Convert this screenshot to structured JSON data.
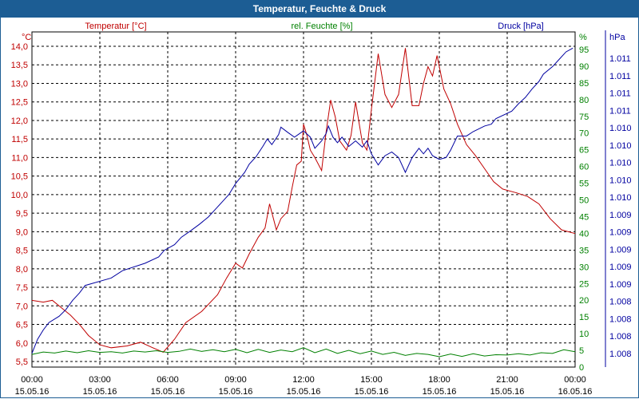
{
  "window": {
    "title": "Temperatur, Feuchte & Druck"
  },
  "chart_data": {
    "type": "line",
    "title": "Temperatur, Feuchte & Druck",
    "x": [
      "15.05.16 00:00",
      "15.05.16 03:00",
      "15.05.16 06:00",
      "15.05.16 09:00",
      "15.05.16 12:00",
      "15.05.16 15:00",
      "15.05.16 18:00",
      "15.05.16 21:00",
      "16.05.16 00:00"
    ],
    "x_ticks": [
      {
        "time": "00:00",
        "date": "15.05.16"
      },
      {
        "time": "03:00",
        "date": "15.05.16"
      },
      {
        "time": "06:00",
        "date": "15.05.16"
      },
      {
        "time": "09:00",
        "date": "15.05.16"
      },
      {
        "time": "12:00",
        "date": "15.05.16"
      },
      {
        "time": "15:00",
        "date": "15.05.16"
      },
      {
        "time": "18:00",
        "date": "15.05.16"
      },
      {
        "time": "21:00",
        "date": "15.05.16"
      },
      {
        "time": "00:00",
        "date": "16.05.16"
      }
    ],
    "xlim_hours": [
      0,
      24
    ],
    "grid": true,
    "axes": {
      "left": {
        "unit": "°C",
        "ylim": [
          5.5,
          14.0
        ],
        "ticks": [
          "5,5",
          "6,0",
          "6,5",
          "7,0",
          "7,5",
          "8,0",
          "8,5",
          "9,0",
          "9,5",
          "10,0",
          "10,5",
          "11,0",
          "11,5",
          "12,0",
          "12,5",
          "13,0",
          "13,5",
          "14,0"
        ],
        "color": "#c00000"
      },
      "right1": {
        "unit": "%",
        "ylim": [
          0,
          95
        ],
        "ticks": [
          "0",
          "5",
          "10",
          "15",
          "20",
          "25",
          "30",
          "35",
          "40",
          "45",
          "50",
          "55",
          "60",
          "65",
          "70",
          "75",
          "80",
          "85",
          "90",
          "95"
        ],
        "color": "#008000"
      },
      "right2": {
        "unit": "hPa",
        "ticks": [
          "1.008",
          "1.008",
          "1.008",
          "1.008",
          "1.009",
          "1.009",
          "1.009",
          "1.009",
          "1.009",
          "1.010",
          "1.010",
          "1.010",
          "1.010",
          "1.010",
          "1.011",
          "1.011",
          "1.011",
          "1.011"
        ],
        "color": "#0000a0"
      }
    },
    "series": [
      {
        "name": "Temperatur [°C]",
        "axis": "left",
        "color": "#c00000",
        "points": [
          [
            0,
            7.15
          ],
          [
            0.5,
            7.1
          ],
          [
            0.9,
            7.15
          ],
          [
            1.3,
            6.95
          ],
          [
            1.7,
            6.75
          ],
          [
            2.1,
            6.5
          ],
          [
            2.5,
            6.2
          ],
          [
            3.0,
            5.95
          ],
          [
            3.5,
            5.87
          ],
          [
            4.2,
            5.92
          ],
          [
            4.8,
            6.02
          ],
          [
            5.3,
            5.88
          ],
          [
            5.8,
            5.75
          ],
          [
            6.3,
            6.1
          ],
          [
            6.8,
            6.55
          ],
          [
            7.5,
            6.85
          ],
          [
            8.2,
            7.3
          ],
          [
            8.6,
            7.75
          ],
          [
            9.0,
            8.15
          ],
          [
            9.3,
            8.02
          ],
          [
            9.6,
            8.4
          ],
          [
            10.0,
            8.85
          ],
          [
            10.3,
            9.1
          ],
          [
            10.5,
            9.75
          ],
          [
            10.8,
            9.05
          ],
          [
            11.0,
            9.35
          ],
          [
            11.3,
            9.55
          ],
          [
            11.5,
            10.2
          ],
          [
            11.7,
            10.8
          ],
          [
            11.9,
            10.9
          ],
          [
            12.0,
            11.9
          ],
          [
            12.15,
            11.6
          ],
          [
            12.3,
            11.2
          ],
          [
            12.5,
            11.0
          ],
          [
            12.8,
            10.65
          ],
          [
            13.0,
            11.7
          ],
          [
            13.2,
            12.55
          ],
          [
            13.4,
            12.1
          ],
          [
            13.6,
            11.45
          ],
          [
            13.9,
            11.2
          ],
          [
            14.1,
            11.6
          ],
          [
            14.3,
            12.5
          ],
          [
            14.6,
            11.4
          ],
          [
            14.8,
            11.2
          ],
          [
            15.0,
            12.3
          ],
          [
            15.3,
            13.8
          ],
          [
            15.6,
            12.7
          ],
          [
            15.9,
            12.35
          ],
          [
            16.2,
            12.7
          ],
          [
            16.5,
            13.95
          ],
          [
            16.8,
            12.4
          ],
          [
            17.1,
            12.4
          ],
          [
            17.3,
            13.0
          ],
          [
            17.5,
            13.45
          ],
          [
            17.7,
            13.2
          ],
          [
            17.9,
            13.75
          ],
          [
            18.2,
            12.85
          ],
          [
            18.5,
            12.45
          ],
          [
            18.8,
            11.9
          ],
          [
            19.2,
            11.35
          ],
          [
            19.6,
            11.05
          ],
          [
            20.0,
            10.7
          ],
          [
            20.4,
            10.35
          ],
          [
            20.8,
            10.15
          ],
          [
            21.4,
            10.05
          ],
          [
            21.9,
            9.95
          ],
          [
            22.4,
            9.75
          ],
          [
            22.9,
            9.35
          ],
          [
            23.4,
            9.05
          ],
          [
            24.0,
            8.95
          ]
        ]
      },
      {
        "name": "rel. Feuchte [%]",
        "axis": "right1",
        "color": "#008000",
        "points": [
          [
            0,
            3.8
          ],
          [
            0.5,
            4.5
          ],
          [
            1.0,
            4.2
          ],
          [
            1.5,
            4.8
          ],
          [
            2.0,
            4.3
          ],
          [
            2.5,
            4.9
          ],
          [
            3.0,
            4.4
          ],
          [
            3.5,
            4.6
          ],
          [
            4.0,
            4.2
          ],
          [
            4.5,
            4.8
          ],
          [
            5.0,
            4.5
          ],
          [
            5.5,
            4.9
          ],
          [
            6.0,
            4.4
          ],
          [
            6.5,
            4.7
          ],
          [
            7.0,
            5.4
          ],
          [
            7.5,
            4.7
          ],
          [
            8.0,
            5.2
          ],
          [
            8.5,
            4.6
          ],
          [
            9.0,
            5.3
          ],
          [
            9.5,
            4.3
          ],
          [
            10.0,
            5.3
          ],
          [
            10.5,
            4.4
          ],
          [
            11.0,
            5.1
          ],
          [
            11.5,
            4.6
          ],
          [
            12.0,
            5.8
          ],
          [
            12.5,
            4.3
          ],
          [
            13.0,
            5.4
          ],
          [
            13.5,
            4.1
          ],
          [
            14.0,
            5.0
          ],
          [
            14.5,
            4.0
          ],
          [
            15.0,
            4.8
          ],
          [
            15.5,
            3.8
          ],
          [
            16.0,
            4.4
          ],
          [
            16.5,
            3.5
          ],
          [
            17.0,
            4.1
          ],
          [
            17.5,
            3.8
          ],
          [
            18.0,
            3.1
          ],
          [
            18.5,
            3.9
          ],
          [
            19.0,
            3.2
          ],
          [
            19.5,
            4.0
          ],
          [
            20.0,
            3.3
          ],
          [
            20.5,
            3.7
          ],
          [
            21.0,
            3.6
          ],
          [
            21.5,
            4.0
          ],
          [
            22.0,
            3.6
          ],
          [
            22.5,
            4.3
          ],
          [
            23.0,
            4.1
          ],
          [
            23.5,
            5.2
          ],
          [
            24.0,
            4.6
          ]
        ]
      },
      {
        "name": "Druck [hPa]",
        "axis": "right2",
        "color": "#0000a0",
        "steps": [
          [
            0,
            5.72
          ],
          [
            0.25,
            6.1
          ],
          [
            0.5,
            6.35
          ],
          [
            0.75,
            6.55
          ],
          [
            1.2,
            6.72
          ],
          [
            1.5,
            6.9
          ],
          [
            1.8,
            7.15
          ],
          [
            2.1,
            7.35
          ],
          [
            2.35,
            7.55
          ],
          [
            3.5,
            7.75
          ],
          [
            4.0,
            7.95
          ],
          [
            5.0,
            8.15
          ],
          [
            5.6,
            8.32
          ],
          [
            5.85,
            8.5
          ],
          [
            6.3,
            8.65
          ],
          [
            6.6,
            8.85
          ],
          [
            7.0,
            9.02
          ],
          [
            7.4,
            9.2
          ],
          [
            7.8,
            9.4
          ],
          [
            8.1,
            9.6
          ],
          [
            8.4,
            9.8
          ],
          [
            8.7,
            10.0
          ],
          [
            9.0,
            10.3
          ],
          [
            9.4,
            10.6
          ],
          [
            9.6,
            10.82
          ],
          [
            9.9,
            11.02
          ],
          [
            10.2,
            11.3
          ],
          [
            10.4,
            11.5
          ],
          [
            10.6,
            11.35
          ],
          [
            10.9,
            11.62
          ],
          [
            11.0,
            11.82
          ],
          [
            11.3,
            11.68
          ],
          [
            11.6,
            11.55
          ],
          [
            12.0,
            11.72
          ],
          [
            12.3,
            11.55
          ],
          [
            12.5,
            11.25
          ],
          [
            12.8,
            11.45
          ],
          [
            13.0,
            11.65
          ],
          [
            13.1,
            11.85
          ],
          [
            13.3,
            11.55
          ],
          [
            13.5,
            11.4
          ],
          [
            13.7,
            11.55
          ],
          [
            14.0,
            11.3
          ],
          [
            14.3,
            11.45
          ],
          [
            14.6,
            11.28
          ],
          [
            14.8,
            11.45
          ],
          [
            15.0,
            11.1
          ],
          [
            15.3,
            10.8
          ],
          [
            15.6,
            11.05
          ],
          [
            15.9,
            11.15
          ],
          [
            16.2,
            11.0
          ],
          [
            16.5,
            10.6
          ],
          [
            16.8,
            11.0
          ],
          [
            17.1,
            11.25
          ],
          [
            17.3,
            11.1
          ],
          [
            17.5,
            11.25
          ],
          [
            17.7,
            11.05
          ],
          [
            18.0,
            10.95
          ],
          [
            18.3,
            11.0
          ],
          [
            18.5,
            11.2
          ],
          [
            18.8,
            11.58
          ],
          [
            19.2,
            11.58
          ],
          [
            19.5,
            11.7
          ],
          [
            20.0,
            11.85
          ],
          [
            20.3,
            11.9
          ],
          [
            20.5,
            12.05
          ],
          [
            21.2,
            12.25
          ],
          [
            21.5,
            12.45
          ],
          [
            21.8,
            12.62
          ],
          [
            22.1,
            12.85
          ],
          [
            22.4,
            13.05
          ],
          [
            22.6,
            13.25
          ],
          [
            23.0,
            13.45
          ],
          [
            23.3,
            13.65
          ],
          [
            23.6,
            13.85
          ],
          [
            23.9,
            13.95
          ]
        ]
      }
    ]
  }
}
